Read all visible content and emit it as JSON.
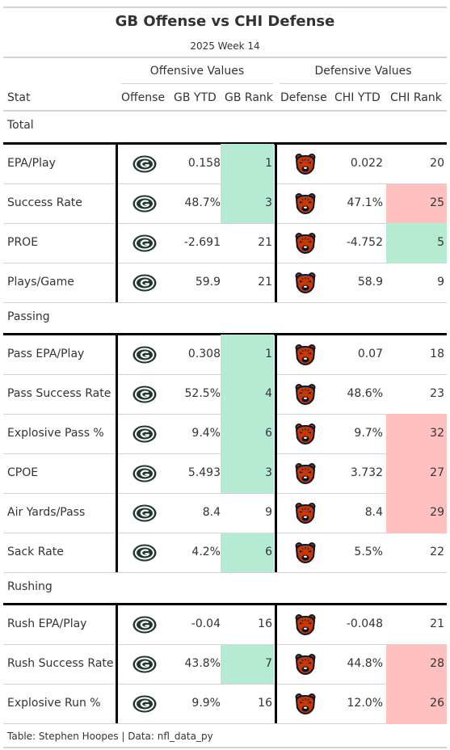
{
  "header": {
    "title": "GB Offense vs CHI Defense",
    "subtitle": "2025 Week 14"
  },
  "spanners": {
    "offense": "Offensive Values",
    "defense": "Defensive Values"
  },
  "columns": [
    "Stat",
    "Offense",
    "GB YTD",
    "GB Rank",
    "Defense",
    "CHI YTD",
    "CHI Rank"
  ],
  "colors": {
    "good_rank": "#b4ebd2",
    "bad_rank": "#ffc0c0",
    "packers_green": "#203731",
    "packers_gold": "#ffb612",
    "bears_navy": "#0b162a",
    "bears_orange": "#c83803"
  },
  "icons": {
    "offense": "packers-logo-icon",
    "defense": "bears-logo-icon"
  },
  "groups": [
    {
      "name": "Total",
      "rows": [
        {
          "stat": "EPA/Play",
          "gb_ytd": "0.158",
          "gb_rank": "1",
          "chi_ytd": "0.022",
          "chi_rank": "20",
          "gb_hl": "good",
          "chi_hl": ""
        },
        {
          "stat": "Success Rate",
          "gb_ytd": "48.7%",
          "gb_rank": "3",
          "chi_ytd": "47.1%",
          "chi_rank": "25",
          "gb_hl": "good",
          "chi_hl": "bad"
        },
        {
          "stat": "PROE",
          "gb_ytd": "-2.691",
          "gb_rank": "21",
          "chi_ytd": "-4.752",
          "chi_rank": "5",
          "gb_hl": "",
          "chi_hl": "good"
        },
        {
          "stat": "Plays/Game",
          "gb_ytd": "59.9",
          "gb_rank": "21",
          "chi_ytd": "58.9",
          "chi_rank": "9",
          "gb_hl": "",
          "chi_hl": ""
        }
      ]
    },
    {
      "name": "Passing",
      "rows": [
        {
          "stat": "Pass EPA/Play",
          "gb_ytd": "0.308",
          "gb_rank": "1",
          "chi_ytd": "0.07",
          "chi_rank": "18",
          "gb_hl": "good",
          "chi_hl": ""
        },
        {
          "stat": "Pass Success Rate",
          "gb_ytd": "52.5%",
          "gb_rank": "4",
          "chi_ytd": "48.6%",
          "chi_rank": "23",
          "gb_hl": "good",
          "chi_hl": ""
        },
        {
          "stat": "Explosive Pass %",
          "gb_ytd": "9.4%",
          "gb_rank": "6",
          "chi_ytd": "9.7%",
          "chi_rank": "32",
          "gb_hl": "good",
          "chi_hl": "bad"
        },
        {
          "stat": "CPOE",
          "gb_ytd": "5.493",
          "gb_rank": "3",
          "chi_ytd": "3.732",
          "chi_rank": "27",
          "gb_hl": "good",
          "chi_hl": "bad"
        },
        {
          "stat": "Air Yards/Pass",
          "gb_ytd": "8.4",
          "gb_rank": "9",
          "chi_ytd": "8.4",
          "chi_rank": "29",
          "gb_hl": "",
          "chi_hl": "bad"
        },
        {
          "stat": "Sack Rate",
          "gb_ytd": "4.2%",
          "gb_rank": "6",
          "chi_ytd": "5.5%",
          "chi_rank": "22",
          "gb_hl": "good",
          "chi_hl": ""
        }
      ]
    },
    {
      "name": "Rushing",
      "rows": [
        {
          "stat": "Rush EPA/Play",
          "gb_ytd": "-0.04",
          "gb_rank": "16",
          "chi_ytd": "-0.048",
          "chi_rank": "21",
          "gb_hl": "",
          "chi_hl": ""
        },
        {
          "stat": "Rush Success Rate",
          "gb_ytd": "43.8%",
          "gb_rank": "7",
          "chi_ytd": "44.8%",
          "chi_rank": "28",
          "gb_hl": "good",
          "chi_hl": "bad"
        },
        {
          "stat": "Explosive Run %",
          "gb_ytd": "9.9%",
          "gb_rank": "16",
          "chi_ytd": "12.0%",
          "chi_rank": "26",
          "gb_hl": "",
          "chi_hl": "bad"
        }
      ]
    }
  ],
  "source_note": "Table: Stephen Hoopes | Data: nfl_data_py"
}
